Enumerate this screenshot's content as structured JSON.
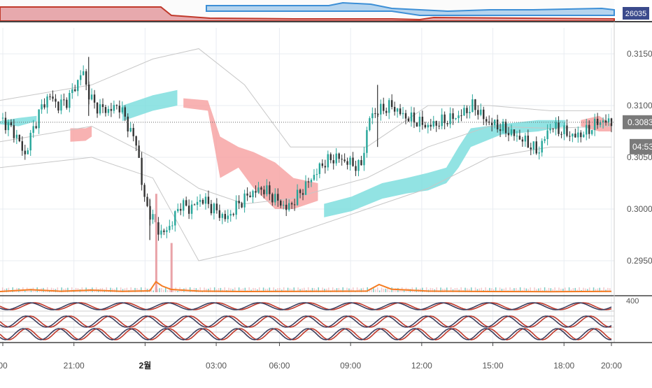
{
  "colors": {
    "background": "#ffffff",
    "grid": "#e9ecf2",
    "candle_up": "#26a69a",
    "candle_down": "#333333",
    "cloud_bull": "#7fdede",
    "cloud_bear": "#f7a5a5",
    "bollinger": "#c7c7c7",
    "volume_line": "#f57c22",
    "volume_bar": "#e9a3a8",
    "osc_red": "#c0392b",
    "osc_dark": "#3d3d5c",
    "price_tag_bg": "#7a7a7a",
    "top_blue": "#3d8fd6",
    "top_red": "#c0392b",
    "top_label_bg": "#3b4a8c",
    "axis_text": "#555555"
  },
  "top_strip": {
    "label": "26035"
  },
  "price_axis": {
    "ticks": [
      "0.31500",
      "0.31000",
      "0.30500",
      "0.30000",
      "0.29500"
    ],
    "last_price": "0.30839",
    "countdown": "04:53"
  },
  "oscillator_axis": {
    "tick": "400"
  },
  "time_axis": {
    "ticks": [
      "00",
      "21:00",
      "2월",
      "03:00",
      "06:00",
      "09:00",
      "12:00",
      "15:00",
      "18:00",
      "20:00"
    ]
  },
  "chart_data": {
    "type": "candlestick",
    "x": [
      "00",
      "21:00",
      "2월",
      "03:00",
      "06:00",
      "09:00",
      "12:00",
      "15:00",
      "18:00",
      "20:00"
    ],
    "ylim": [
      0.2925,
      0.3175
    ],
    "grid": true,
    "close_path": [
      [
        0.0,
        0.3088
      ],
      [
        0.3,
        0.308
      ],
      [
        0.6,
        0.3068
      ],
      [
        0.8,
        0.305
      ],
      [
        1.0,
        0.307
      ],
      [
        1.3,
        0.3095
      ],
      [
        1.6,
        0.311
      ],
      [
        1.9,
        0.31
      ],
      [
        2.2,
        0.3105
      ],
      [
        2.5,
        0.312
      ],
      [
        2.7,
        0.3135
      ],
      [
        2.85,
        0.3115
      ],
      [
        3.1,
        0.31
      ],
      [
        3.5,
        0.3095
      ],
      [
        3.9,
        0.31
      ],
      [
        4.2,
        0.308
      ],
      [
        4.5,
        0.306
      ],
      [
        4.7,
        0.301
      ],
      [
        5.0,
        0.299
      ],
      [
        5.3,
        0.2975
      ],
      [
        5.6,
        0.2985
      ],
      [
        5.9,
        0.3005
      ],
      [
        6.2,
        0.3
      ],
      [
        6.6,
        0.301
      ],
      [
        7.0,
        0.3
      ],
      [
        7.4,
        0.299
      ],
      [
        7.8,
        0.3005
      ],
      [
        8.2,
        0.3015
      ],
      [
        8.6,
        0.302
      ],
      [
        9.0,
        0.301
      ],
      [
        9.4,
        0.3
      ],
      [
        9.8,
        0.3015
      ],
      [
        10.2,
        0.303
      ],
      [
        10.6,
        0.3045
      ],
      [
        11.0,
        0.305
      ],
      [
        11.4,
        0.3045
      ],
      [
        11.8,
        0.304
      ],
      [
        12.1,
        0.309
      ],
      [
        12.4,
        0.3095
      ],
      [
        12.8,
        0.31
      ],
      [
        13.2,
        0.309
      ],
      [
        13.6,
        0.3085
      ],
      [
        14.0,
        0.308
      ],
      [
        14.5,
        0.3085
      ],
      [
        15.0,
        0.309
      ],
      [
        15.5,
        0.31
      ],
      [
        15.9,
        0.3085
      ],
      [
        16.3,
        0.308
      ],
      [
        16.8,
        0.3072
      ],
      [
        17.2,
        0.3065
      ],
      [
        17.6,
        0.3055
      ],
      [
        18.0,
        0.308
      ],
      [
        18.4,
        0.3075
      ],
      [
        18.8,
        0.307
      ],
      [
        19.2,
        0.3075
      ],
      [
        19.6,
        0.3085
      ],
      [
        20.0,
        0.3084
      ]
    ],
    "spikes": [
      {
        "x": 2.9,
        "high": 0.3147,
        "low": 0.309
      },
      {
        "x": 12.35,
        "high": 0.312,
        "low": 0.306
      },
      {
        "x": 4.9,
        "high": 0.301,
        "low": 0.297
      }
    ],
    "cloud_segments": [
      {
        "kind": "bull",
        "points": [
          [
            0.0,
            0.3085,
            0.3082
          ],
          [
            0.6,
            0.3088,
            0.308
          ],
          [
            1.2,
            0.309,
            0.3085
          ]
        ]
      },
      {
        "kind": "bear",
        "points": [
          [
            2.3,
            0.3078,
            0.3065
          ],
          [
            2.8,
            0.3078,
            0.3066
          ],
          [
            3.0,
            0.308,
            0.307
          ]
        ]
      },
      {
        "kind": "bull",
        "points": [
          [
            4.0,
            0.31,
            0.3085
          ],
          [
            5.0,
            0.311,
            0.3095
          ],
          [
            5.8,
            0.3115,
            0.31
          ]
        ]
      },
      {
        "kind": "bear",
        "points": [
          [
            6.0,
            0.3107,
            0.3098
          ],
          [
            6.8,
            0.3105,
            0.3095
          ],
          [
            7.2,
            0.307,
            0.303
          ],
          [
            7.8,
            0.306,
            0.304
          ],
          [
            8.3,
            0.3055,
            0.302
          ],
          [
            9.0,
            0.3045,
            0.3
          ],
          [
            9.6,
            0.303,
            0.3
          ],
          [
            10.4,
            0.3025,
            0.3008
          ]
        ]
      },
      {
        "kind": "bull",
        "points": [
          [
            10.6,
            0.3005,
            0.2992
          ],
          [
            11.5,
            0.3012,
            0.2998
          ],
          [
            12.5,
            0.3025,
            0.301
          ],
          [
            13.3,
            0.303,
            0.3015
          ],
          [
            14.0,
            0.3035,
            0.3018
          ],
          [
            14.6,
            0.304,
            0.3025
          ],
          [
            15.0,
            0.306,
            0.304
          ],
          [
            15.4,
            0.3078,
            0.306
          ],
          [
            16.4,
            0.3082,
            0.3072
          ],
          [
            17.6,
            0.3086,
            0.3075
          ],
          [
            18.5,
            0.3086,
            0.308
          ]
        ]
      },
      {
        "kind": "bear",
        "points": [
          [
            19.0,
            0.3086,
            0.308
          ],
          [
            19.6,
            0.309,
            0.3075
          ],
          [
            20.0,
            0.3082,
            0.3075
          ]
        ]
      }
    ],
    "bollinger": [
      {
        "points": [
          [
            0,
            0.3105
          ],
          [
            3,
            0.312
          ],
          [
            5,
            0.3145
          ],
          [
            6.5,
            0.3155
          ],
          [
            8,
            0.312
          ],
          [
            9.5,
            0.306
          ],
          [
            12,
            0.306
          ],
          [
            14,
            0.31
          ],
          [
            16,
            0.31
          ],
          [
            18,
            0.3095
          ],
          [
            20,
            0.3095
          ]
        ]
      },
      {
        "points": [
          [
            0,
            0.3065
          ],
          [
            3,
            0.308
          ],
          [
            5,
            0.305
          ],
          [
            6.5,
            0.302
          ],
          [
            8,
            0.3005
          ],
          [
            9.5,
            0.301
          ],
          [
            12,
            0.303
          ],
          [
            14,
            0.306
          ],
          [
            16,
            0.308
          ],
          [
            18,
            0.3078
          ],
          [
            20,
            0.308
          ]
        ]
      },
      {
        "points": [
          [
            0,
            0.304
          ],
          [
            3,
            0.305
          ],
          [
            5,
            0.303
          ],
          [
            6.5,
            0.295
          ],
          [
            8,
            0.296
          ],
          [
            9.5,
            0.2975
          ],
          [
            12,
            0.3
          ],
          [
            14,
            0.302
          ],
          [
            16,
            0.305
          ],
          [
            18,
            0.306
          ],
          [
            20,
            0.306
          ]
        ]
      }
    ],
    "volume_path": [
      [
        0.0,
        0.05
      ],
      [
        1.0,
        0.18
      ],
      [
        2.0,
        0.07
      ],
      [
        3.0,
        0.15
      ],
      [
        4.0,
        0.06
      ],
      [
        4.9,
        0.1
      ],
      [
        5.1,
        0.75
      ],
      [
        5.3,
        0.45
      ],
      [
        5.6,
        0.2
      ],
      [
        6.5,
        0.08
      ],
      [
        8.0,
        0.05
      ],
      [
        10.0,
        0.06
      ],
      [
        12.0,
        0.08
      ],
      [
        12.4,
        0.55
      ],
      [
        12.8,
        0.22
      ],
      [
        14.0,
        0.08
      ],
      [
        16.0,
        0.05
      ],
      [
        18.0,
        0.04
      ],
      [
        20.0,
        0.06
      ]
    ],
    "volume_spikes": [
      {
        "x": 5.1,
        "level": 3.2
      },
      {
        "x": 5.6,
        "level": 1.6
      }
    ]
  }
}
